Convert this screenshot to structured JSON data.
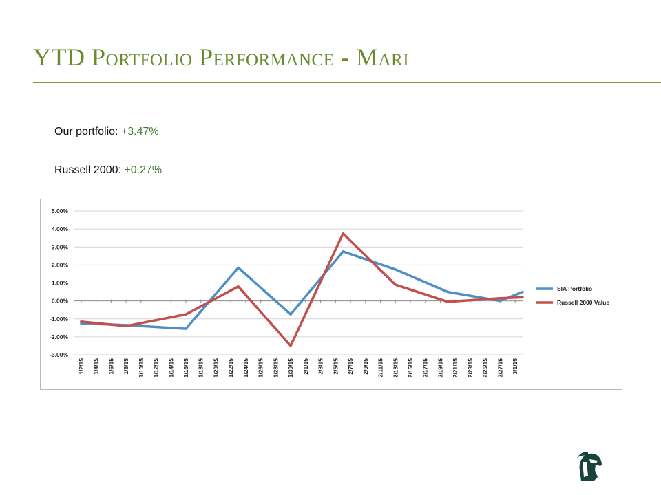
{
  "slide": {
    "title": "YTD Portfolio  Performance - Mari",
    "stats": [
      {
        "label": "Our portfolio: ",
        "value": "+3.47%"
      },
      {
        "label": "Russell 2000: ",
        "value": "+0.27%"
      }
    ]
  },
  "colors": {
    "title": "#6a8a2c",
    "rule": "#7f9a3c",
    "positive_value": "#3f7a2a",
    "logo": "#18453b"
  },
  "icons": {
    "logo": "spartan-helmet-icon"
  },
  "chart_data": {
    "type": "line",
    "title": "",
    "xlabel": "",
    "ylabel": "",
    "x": [
      "1/2/15",
      "1/4/15",
      "1/6/15",
      "1/8/15",
      "1/10/15",
      "1/12/15",
      "1/14/15",
      "1/16/15",
      "1/18/15",
      "1/20/15",
      "1/22/15",
      "1/24/15",
      "1/26/15",
      "1/28/15",
      "1/30/15",
      "2/1/15",
      "2/3/15",
      "2/5/15",
      "2/7/15",
      "2/9/15",
      "2/11/15",
      "2/13/15",
      "2/15/15",
      "2/17/15",
      "2/19/15",
      "2/21/15",
      "2/23/15",
      "2/25/15",
      "2/27/15",
      "3/1/15"
    ],
    "yticks": [
      "5.00%",
      "4.00%",
      "3.00%",
      "2.00%",
      "1.00%",
      "0.00%",
      "-1.00%",
      "-2.00%",
      "-3.00%"
    ],
    "ylim": [
      -3,
      5
    ],
    "grid": true,
    "legend_position": "right",
    "series": [
      {
        "name": "SIA Portfolio",
        "color": "#4f8fc6",
        "points": [
          [
            "1/2/15",
            -1.25
          ],
          [
            "1/8/15",
            -1.35
          ],
          [
            "1/16/15",
            -1.55
          ],
          [
            "1/23/15",
            1.85
          ],
          [
            "1/30/15",
            -0.75
          ],
          [
            "2/6/15",
            2.75
          ],
          [
            "2/13/15",
            1.75
          ],
          [
            "2/20/15",
            0.5
          ],
          [
            "2/27/15",
            0.0
          ],
          [
            "3/2/15",
            0.5
          ]
        ]
      },
      {
        "name": "Russell 2000 Value",
        "color": "#c0504d",
        "points": [
          [
            "1/2/15",
            -1.15
          ],
          [
            "1/8/15",
            -1.4
          ],
          [
            "1/16/15",
            -0.75
          ],
          [
            "1/23/15",
            0.8
          ],
          [
            "1/30/15",
            -2.5
          ],
          [
            "2/6/15",
            3.75
          ],
          [
            "2/13/15",
            0.9
          ],
          [
            "2/20/15",
            -0.05
          ],
          [
            "2/27/15",
            0.15
          ],
          [
            "3/2/15",
            0.2
          ]
        ]
      }
    ]
  }
}
